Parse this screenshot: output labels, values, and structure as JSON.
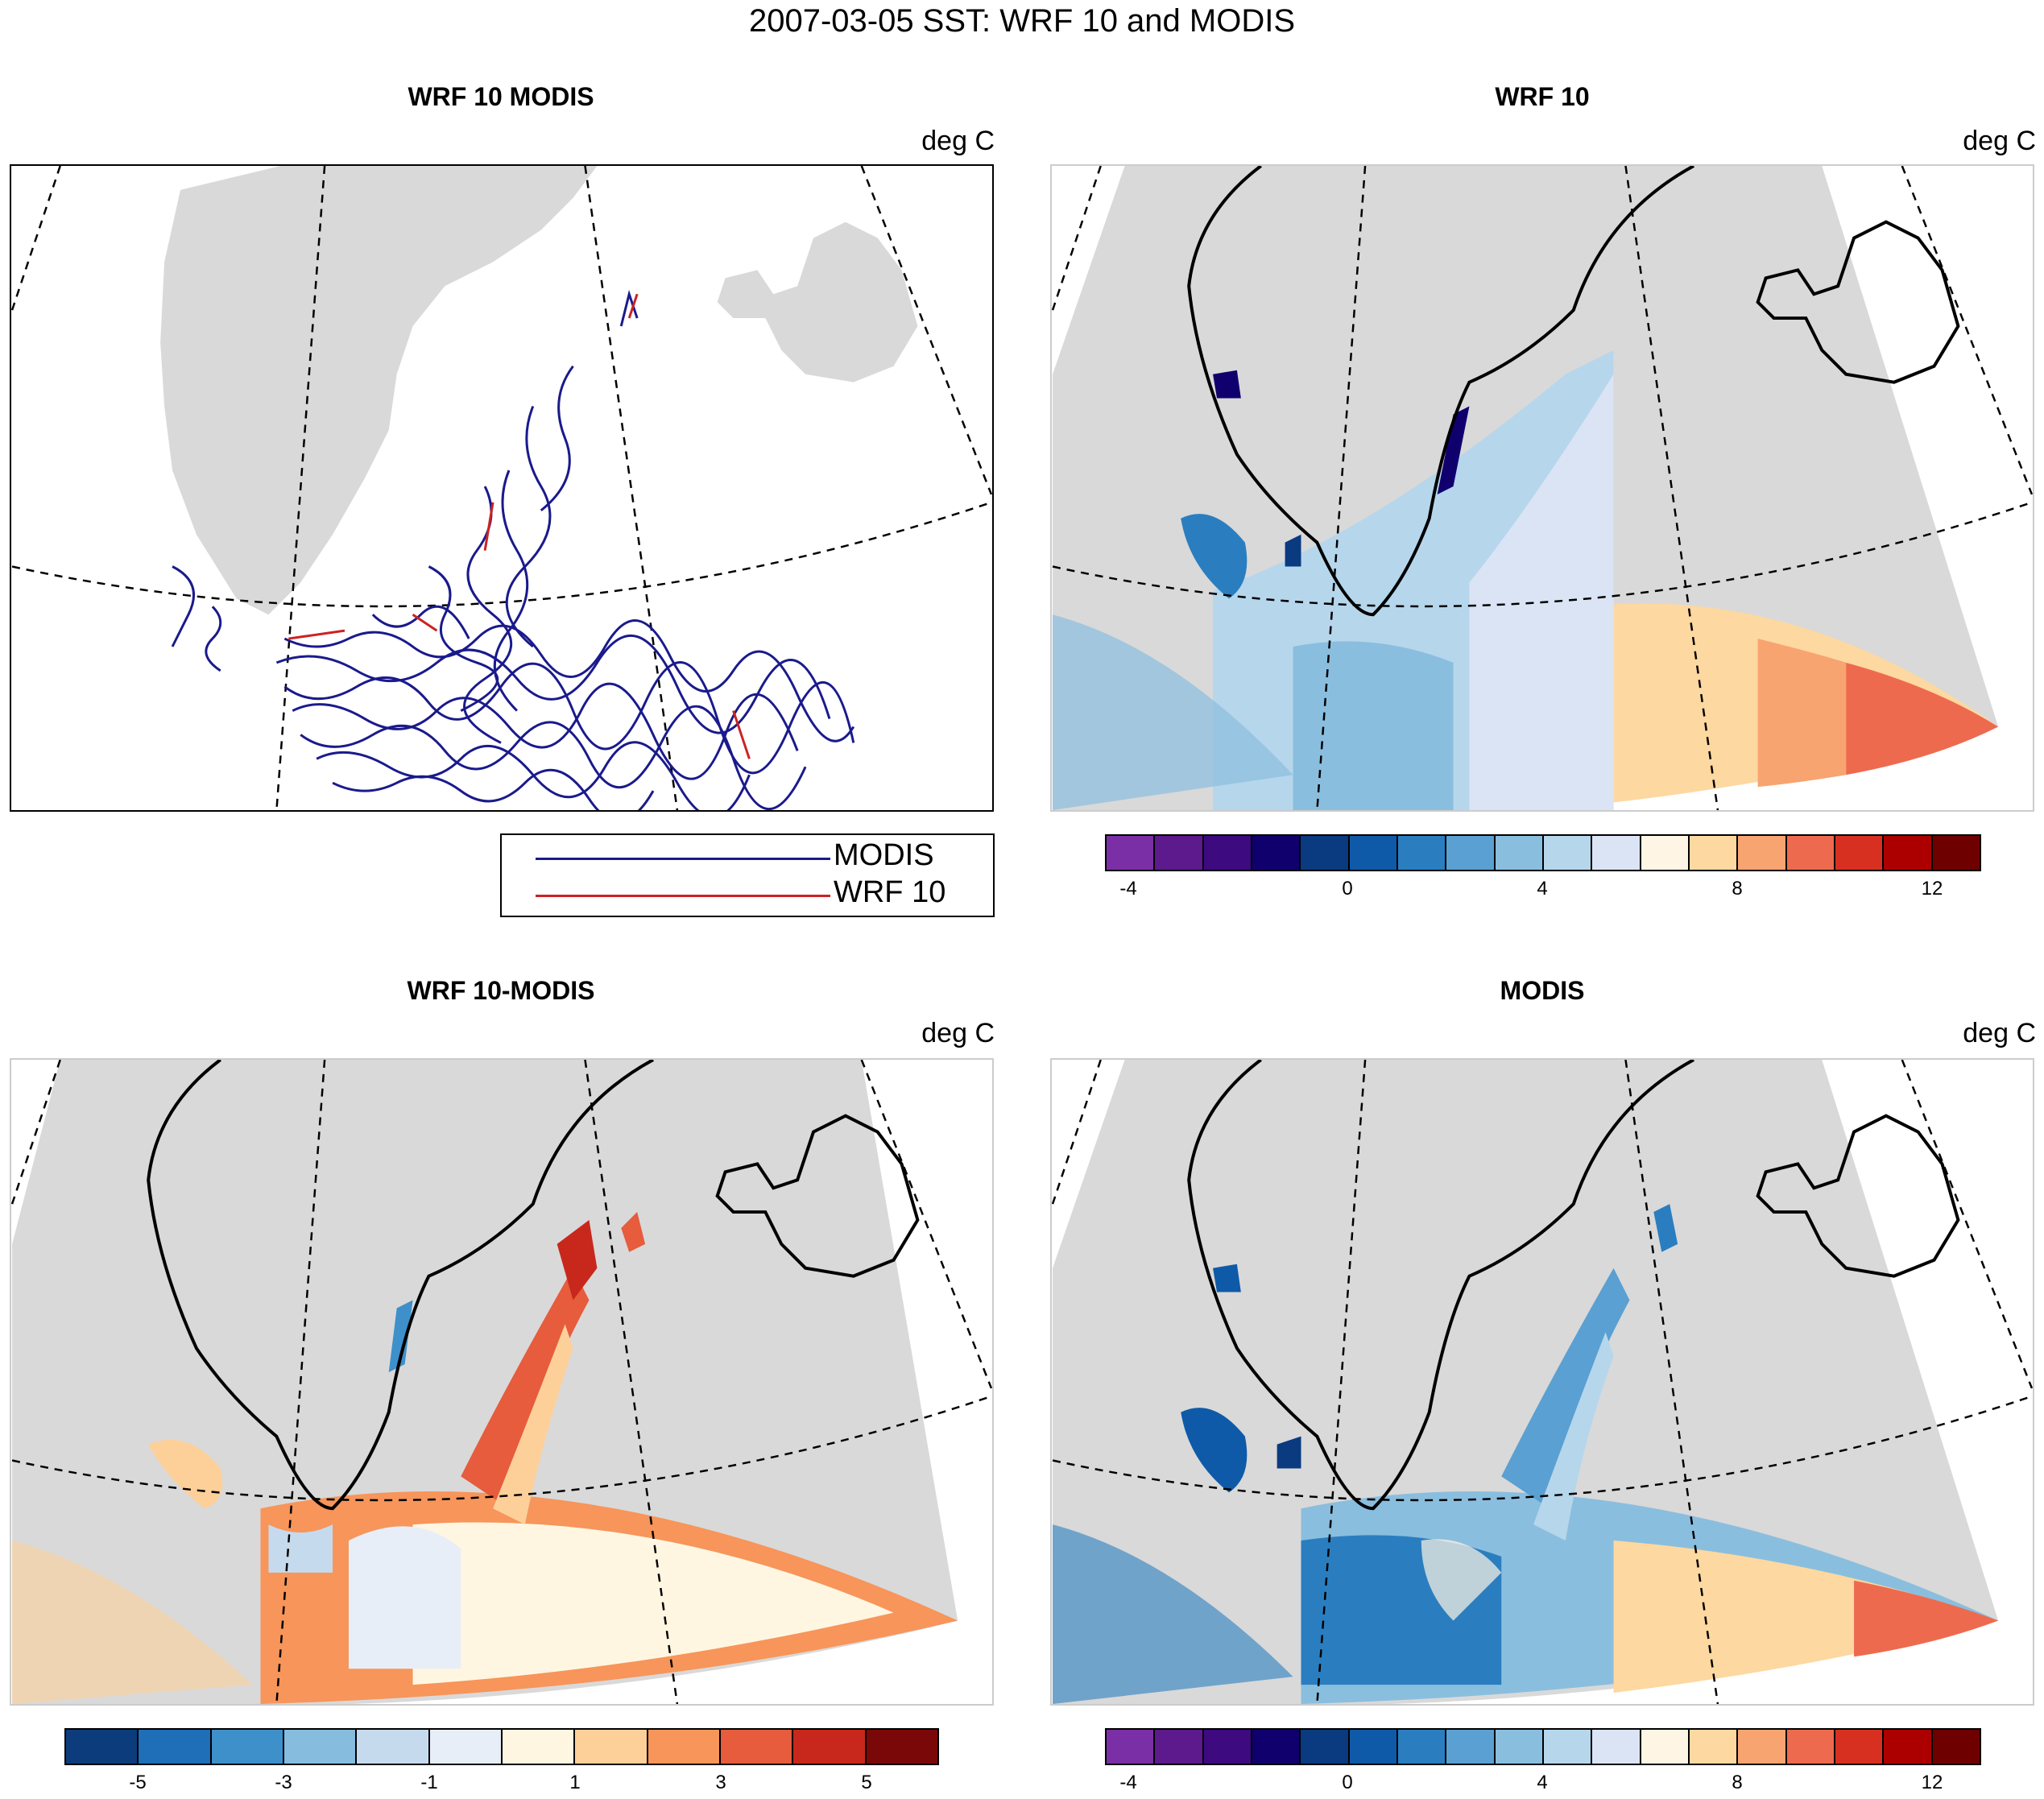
{
  "title": "2007-03-05 SST: WRF 10 and MODIS",
  "unit_label": "deg C",
  "panels": {
    "contour": {
      "title": "WRF 10 MODIS"
    },
    "wrf": {
      "title": "WRF 10"
    },
    "diff": {
      "title": "WRF 10-MODIS"
    },
    "modis": {
      "title": "MODIS"
    }
  },
  "legend": {
    "items": [
      {
        "label": "MODIS",
        "color": "#1a1a8c"
      },
      {
        "label": "WRF 10",
        "color": "#cc2222"
      }
    ]
  },
  "colorbar_sst": {
    "colors": [
      "#7b2fa6",
      "#5c1a8c",
      "#3d0a80",
      "#10006e",
      "#0a3a80",
      "#0e5aa8",
      "#2a7ec0",
      "#5aa0d2",
      "#8abede",
      "#b6d6ec",
      "#dae4f4",
      "#fff5e4",
      "#fdd8a0",
      "#f8a470",
      "#ee6a4e",
      "#d83020",
      "#ac0000",
      "#6e0000"
    ],
    "ticks": [
      "-4",
      "0",
      "4",
      "8",
      "12"
    ]
  },
  "colorbar_diff": {
    "colors": [
      "#0d3c7c",
      "#1e6eb8",
      "#3e90ca",
      "#86bcde",
      "#c6daee",
      "#e8eef8",
      "#fff6e2",
      "#fdd09a",
      "#f7955a",
      "#e65c3c",
      "#c8281c",
      "#7a0808"
    ],
    "ticks": [
      "-5",
      "-3",
      "-1",
      "1",
      "3",
      "5"
    ]
  },
  "map_colors": {
    "land": "#d9d9d9",
    "outside": "#ffffff"
  }
}
